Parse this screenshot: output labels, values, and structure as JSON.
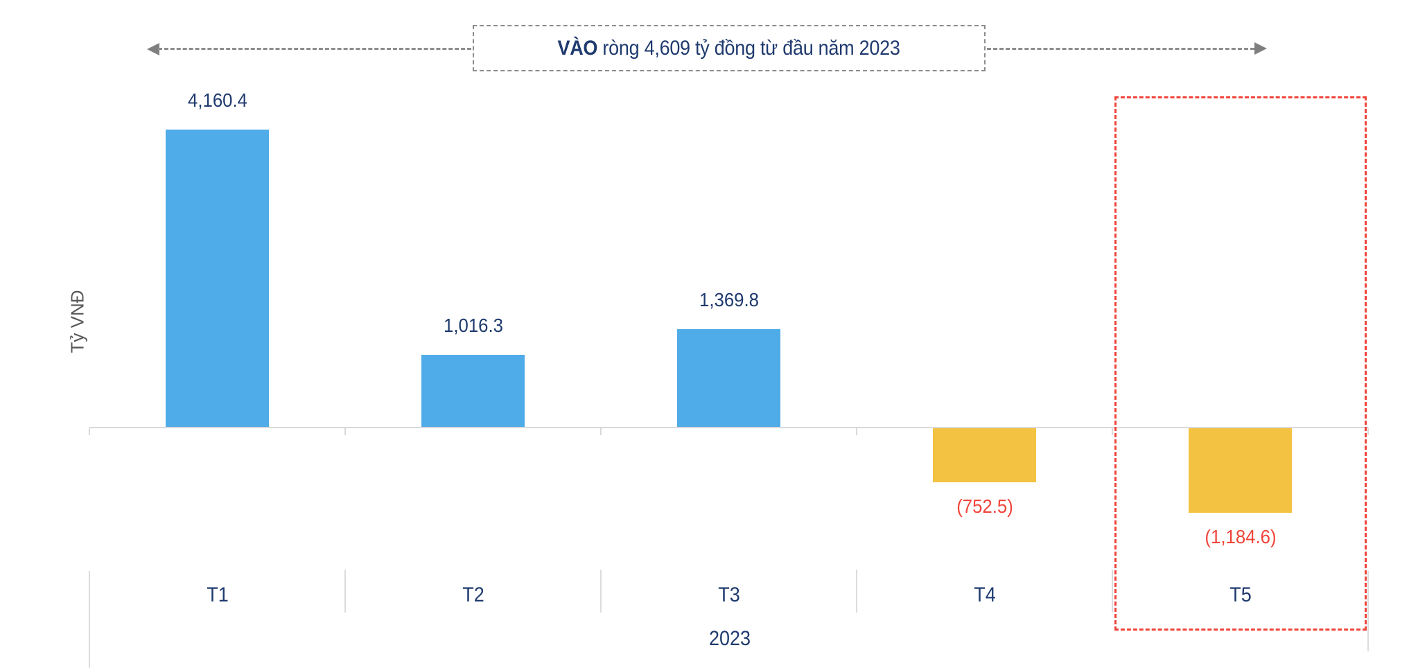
{
  "annotation": {
    "bold": "VÀO",
    "rest": " ròng 4,609 tỷ đồng từ đầu năm 2023",
    "left_arrow_icon": "arrow-left-icon",
    "right_arrow_icon": "arrow-right-icon"
  },
  "colors": {
    "positive_bar": "#4FACE8",
    "negative_bar": "#F4C242",
    "positive_label": "#1F3A6E",
    "negative_label": "#F0443A",
    "highlight_box": "#F0443A",
    "axis": "#D9D9D9"
  },
  "chart_data": {
    "type": "bar",
    "title": "VÀO ròng 4,609 tỷ đồng từ đầu năm 2023",
    "xlabel": "2023",
    "ylabel": "Tỷ VNĐ",
    "categories": [
      "T1",
      "T2",
      "T3",
      "T4",
      "T5"
    ],
    "values": [
      4160.4,
      1016.3,
      1369.8,
      -752.5,
      -1184.6
    ],
    "value_labels": [
      "4,160.4",
      "1,016.3",
      "1,369.8",
      "(752.5)",
      "(1,184.6)"
    ],
    "group_label": "2023",
    "highlighted_category": "T5",
    "grid": false,
    "legend": null,
    "annotations": [
      "VÀO ròng 4,609 tỷ đồng từ đầu năm 2023"
    ]
  }
}
